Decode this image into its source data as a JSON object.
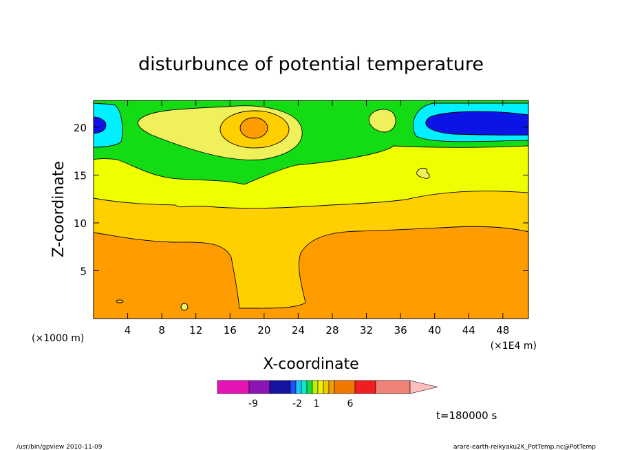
{
  "chart_data": {
    "type": "heatmap",
    "title": "disturbunce of potential temperature",
    "xlabel": "X-coordinate",
    "ylabel": "Z-coordinate",
    "x_unit_left": "(×1000 m)",
    "x_unit_right": "(×1E4 m)",
    "x_ticks": [
      4,
      8,
      12,
      16,
      20,
      24,
      28,
      32,
      36,
      40,
      44,
      48
    ],
    "y_ticks": [
      5,
      10,
      15,
      20
    ],
    "xlim": [
      0,
      51
    ],
    "ylim": [
      0,
      22.8
    ],
    "time_label": "t=180000 s",
    "colorbar": {
      "ticks": [
        "-9",
        "-2",
        "1",
        "6"
      ],
      "colors": [
        "#e614b4",
        "#8a14b4",
        "#1414a0",
        "#1e50ff",
        "#14c8ff",
        "#14e6c8",
        "#14dc3c",
        "#bef000",
        "#f0f000",
        "#f0c800",
        "#f0a000",
        "#f07800",
        "#f01e1e",
        "#f08278",
        "#ffbebe"
      ]
    },
    "fill_colors": {
      "cyan": "#00f0ff",
      "blue": "#0a14e6",
      "green": "#14dc14",
      "yellow_light": "#f0f05a",
      "yellow": "#f0ff00",
      "gold": "#ffcf00",
      "orange": "#ff9c00"
    }
  },
  "footer": {
    "left": "/usr/bin/gpview  2010-11-09",
    "right": "arare-earth-reikyaku2K_PotTemp.nc@PotTemp"
  }
}
